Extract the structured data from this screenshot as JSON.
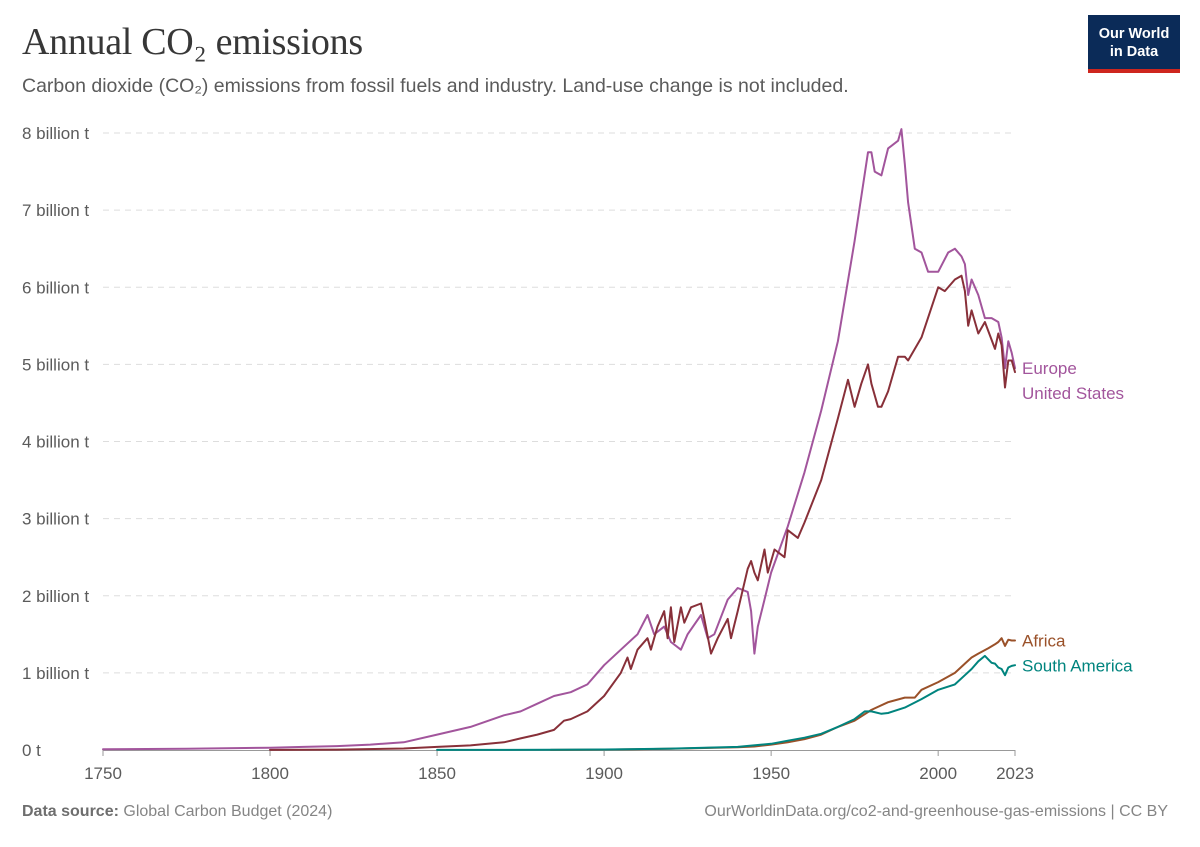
{
  "header": {
    "title": "Annual CO₂ emissions",
    "subtitle": "Carbon dioxide (CO₂) emissions from fossil fuels and industry. Land-use change is not included.",
    "logo_line1": "Our World",
    "logo_line2": "in Data"
  },
  "footer": {
    "source_label": "Data source:",
    "source_value": "Global Carbon Budget (2024)",
    "url": "OurWorldinData.org/co2-and-greenhouse-gas-emissions | CC BY"
  },
  "chart_data": {
    "type": "line",
    "title": "Annual CO₂ emissions",
    "xlabel": "",
    "ylabel": "",
    "xlim": [
      1750,
      2023
    ],
    "ylim": [
      0,
      8
    ],
    "x_ticks": [
      {
        "value": 1750,
        "label": "1750"
      },
      {
        "value": 1800,
        "label": "1800"
      },
      {
        "value": 1850,
        "label": "1850"
      },
      {
        "value": 1900,
        "label": "1900"
      },
      {
        "value": 1950,
        "label": "1950"
      },
      {
        "value": 2000,
        "label": "2000"
      },
      {
        "value": 2023,
        "label": "2023"
      }
    ],
    "y_ticks": [
      {
        "value": 0,
        "label": "0 t"
      },
      {
        "value": 1,
        "label": "1 billion t"
      },
      {
        "value": 2,
        "label": "2 billion t"
      },
      {
        "value": 3,
        "label": "3 billion t"
      },
      {
        "value": 4,
        "label": "4 billion t"
      },
      {
        "value": 5,
        "label": "5 billion t"
      },
      {
        "value": 6,
        "label": "6 billion t"
      },
      {
        "value": 7,
        "label": "7 billion t"
      },
      {
        "value": 8,
        "label": "8 billion t"
      }
    ],
    "grid": true,
    "units": "billion tonnes",
    "series": [
      {
        "name": "Europe",
        "color": "#a2559c",
        "points": [
          [
            1750,
            0.01
          ],
          [
            1775,
            0.015
          ],
          [
            1800,
            0.03
          ],
          [
            1810,
            0.04
          ],
          [
            1820,
            0.05
          ],
          [
            1830,
            0.07
          ],
          [
            1840,
            0.1
          ],
          [
            1850,
            0.2
          ],
          [
            1860,
            0.3
          ],
          [
            1870,
            0.45
          ],
          [
            1875,
            0.5
          ],
          [
            1880,
            0.6
          ],
          [
            1885,
            0.7
          ],
          [
            1890,
            0.75
          ],
          [
            1895,
            0.85
          ],
          [
            1900,
            1.1
          ],
          [
            1905,
            1.3
          ],
          [
            1910,
            1.5
          ],
          [
            1913,
            1.75
          ],
          [
            1915,
            1.5
          ],
          [
            1918,
            1.6
          ],
          [
            1920,
            1.4
          ],
          [
            1923,
            1.3
          ],
          [
            1925,
            1.5
          ],
          [
            1929,
            1.75
          ],
          [
            1931,
            1.45
          ],
          [
            1933,
            1.5
          ],
          [
            1937,
            1.95
          ],
          [
            1940,
            2.1
          ],
          [
            1943,
            2.05
          ],
          [
            1944,
            1.8
          ],
          [
            1945,
            1.25
          ],
          [
            1946,
            1.6
          ],
          [
            1948,
            1.95
          ],
          [
            1950,
            2.3
          ],
          [
            1955,
            2.9
          ],
          [
            1960,
            3.6
          ],
          [
            1965,
            4.4
          ],
          [
            1970,
            5.3
          ],
          [
            1975,
            6.6
          ],
          [
            1979,
            7.75
          ],
          [
            1980,
            7.75
          ],
          [
            1981,
            7.5
          ],
          [
            1983,
            7.45
          ],
          [
            1985,
            7.8
          ],
          [
            1988,
            7.9
          ],
          [
            1989,
            8.05
          ],
          [
            1990,
            7.6
          ],
          [
            1991,
            7.1
          ],
          [
            1993,
            6.5
          ],
          [
            1995,
            6.45
          ],
          [
            1997,
            6.2
          ],
          [
            2000,
            6.2
          ],
          [
            2003,
            6.45
          ],
          [
            2005,
            6.5
          ],
          [
            2007,
            6.4
          ],
          [
            2008,
            6.3
          ],
          [
            2009,
            5.9
          ],
          [
            2010,
            6.1
          ],
          [
            2012,
            5.9
          ],
          [
            2014,
            5.6
          ],
          [
            2016,
            5.6
          ],
          [
            2018,
            5.55
          ],
          [
            2019,
            5.35
          ],
          [
            2020,
            4.95
          ],
          [
            2021,
            5.3
          ],
          [
            2022,
            5.15
          ],
          [
            2023,
            4.95
          ]
        ]
      },
      {
        "name": "United States",
        "color": "#883039",
        "label_color": "#a2559c",
        "points": [
          [
            1800,
            0.001
          ],
          [
            1820,
            0.005
          ],
          [
            1840,
            0.02
          ],
          [
            1850,
            0.04
          ],
          [
            1860,
            0.06
          ],
          [
            1870,
            0.1
          ],
          [
            1875,
            0.15
          ],
          [
            1880,
            0.2
          ],
          [
            1885,
            0.26
          ],
          [
            1888,
            0.38
          ],
          [
            1890,
            0.4
          ],
          [
            1895,
            0.5
          ],
          [
            1900,
            0.7
          ],
          [
            1905,
            1.0
          ],
          [
            1907,
            1.2
          ],
          [
            1908,
            1.05
          ],
          [
            1910,
            1.3
          ],
          [
            1913,
            1.45
          ],
          [
            1914,
            1.3
          ],
          [
            1916,
            1.6
          ],
          [
            1918,
            1.8
          ],
          [
            1919,
            1.45
          ],
          [
            1920,
            1.85
          ],
          [
            1921,
            1.4
          ],
          [
            1923,
            1.85
          ],
          [
            1924,
            1.65
          ],
          [
            1926,
            1.85
          ],
          [
            1929,
            1.9
          ],
          [
            1930,
            1.7
          ],
          [
            1932,
            1.25
          ],
          [
            1934,
            1.45
          ],
          [
            1937,
            1.7
          ],
          [
            1938,
            1.45
          ],
          [
            1940,
            1.8
          ],
          [
            1943,
            2.35
          ],
          [
            1944,
            2.45
          ],
          [
            1945,
            2.3
          ],
          [
            1946,
            2.2
          ],
          [
            1948,
            2.6
          ],
          [
            1949,
            2.3
          ],
          [
            1951,
            2.6
          ],
          [
            1954,
            2.5
          ],
          [
            1955,
            2.85
          ],
          [
            1958,
            2.75
          ],
          [
            1960,
            2.95
          ],
          [
            1965,
            3.5
          ],
          [
            1970,
            4.3
          ],
          [
            1973,
            4.8
          ],
          [
            1975,
            4.45
          ],
          [
            1977,
            4.75
          ],
          [
            1979,
            5.0
          ],
          [
            1980,
            4.75
          ],
          [
            1982,
            4.45
          ],
          [
            1983,
            4.45
          ],
          [
            1985,
            4.65
          ],
          [
            1988,
            5.1
          ],
          [
            1990,
            5.1
          ],
          [
            1991,
            5.05
          ],
          [
            1995,
            5.35
          ],
          [
            2000,
            6.0
          ],
          [
            2002,
            5.95
          ],
          [
            2005,
            6.1
          ],
          [
            2007,
            6.15
          ],
          [
            2008,
            5.95
          ],
          [
            2009,
            5.5
          ],
          [
            2010,
            5.7
          ],
          [
            2012,
            5.4
          ],
          [
            2014,
            5.55
          ],
          [
            2017,
            5.2
          ],
          [
            2018,
            5.4
          ],
          [
            2019,
            5.25
          ],
          [
            2020,
            4.7
          ],
          [
            2021,
            5.05
          ],
          [
            2022,
            5.05
          ],
          [
            2023,
            4.9
          ]
        ]
      },
      {
        "name": "Africa",
        "color": "#9a5129",
        "points": [
          [
            1884,
            0.001
          ],
          [
            1900,
            0.005
          ],
          [
            1920,
            0.015
          ],
          [
            1940,
            0.035
          ],
          [
            1945,
            0.045
          ],
          [
            1950,
            0.07
          ],
          [
            1955,
            0.1
          ],
          [
            1960,
            0.14
          ],
          [
            1965,
            0.2
          ],
          [
            1970,
            0.3
          ],
          [
            1975,
            0.38
          ],
          [
            1980,
            0.52
          ],
          [
            1985,
            0.62
          ],
          [
            1990,
            0.68
          ],
          [
            1993,
            0.68
          ],
          [
            1995,
            0.78
          ],
          [
            2000,
            0.88
          ],
          [
            2005,
            1.0
          ],
          [
            2008,
            1.12
          ],
          [
            2010,
            1.2
          ],
          [
            2012,
            1.25
          ],
          [
            2015,
            1.32
          ],
          [
            2017,
            1.37
          ],
          [
            2018,
            1.4
          ],
          [
            2019,
            1.45
          ],
          [
            2020,
            1.35
          ],
          [
            2021,
            1.43
          ],
          [
            2022,
            1.42
          ],
          [
            2023,
            1.42
          ]
        ]
      },
      {
        "name": "South America",
        "color": "#00847e",
        "points": [
          [
            1850,
            0.001
          ],
          [
            1884,
            0.002
          ],
          [
            1900,
            0.006
          ],
          [
            1920,
            0.018
          ],
          [
            1940,
            0.04
          ],
          [
            1950,
            0.08
          ],
          [
            1955,
            0.12
          ],
          [
            1960,
            0.16
          ],
          [
            1965,
            0.21
          ],
          [
            1970,
            0.3
          ],
          [
            1975,
            0.4
          ],
          [
            1978,
            0.5
          ],
          [
            1980,
            0.5
          ],
          [
            1983,
            0.47
          ],
          [
            1985,
            0.48
          ],
          [
            1990,
            0.55
          ],
          [
            1995,
            0.66
          ],
          [
            2000,
            0.78
          ],
          [
            2005,
            0.85
          ],
          [
            2008,
            0.97
          ],
          [
            2010,
            1.05
          ],
          [
            2012,
            1.15
          ],
          [
            2014,
            1.22
          ],
          [
            2016,
            1.13
          ],
          [
            2017,
            1.12
          ],
          [
            2018,
            1.07
          ],
          [
            2019,
            1.05
          ],
          [
            2020,
            0.97
          ],
          [
            2021,
            1.07
          ],
          [
            2022,
            1.09
          ],
          [
            2023,
            1.1
          ]
        ]
      }
    ]
  }
}
